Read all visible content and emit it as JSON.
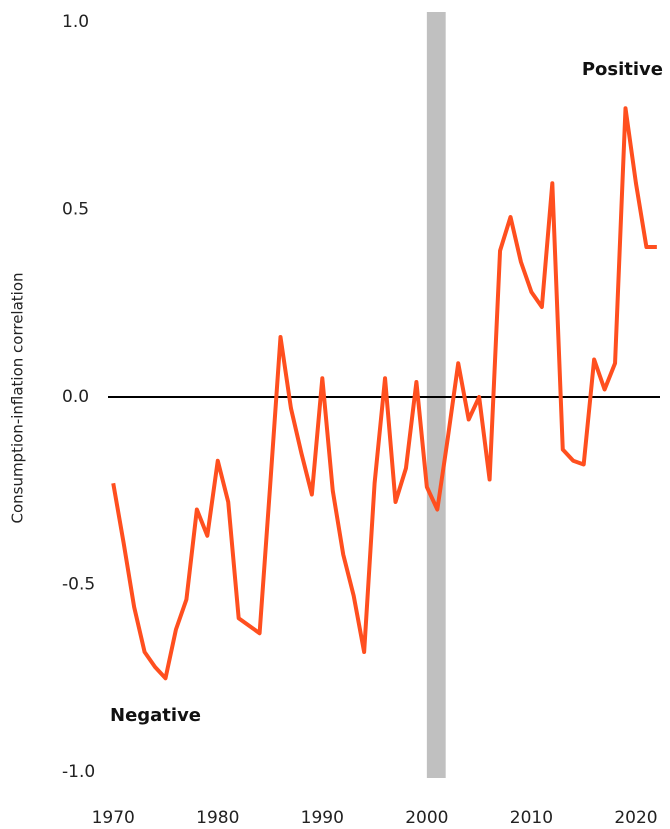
{
  "chart_data": {
    "type": "line",
    "y_label": "Consumption-inflation correlation",
    "annotations": [
      "Positive",
      "Negative"
    ],
    "x": [
      1970,
      1971,
      1972,
      1973,
      1974,
      1975,
      1976,
      1977,
      1978,
      1979,
      1980,
      1981,
      1982,
      1983,
      1984,
      1985,
      1986,
      1987,
      1988,
      1989,
      1990,
      1991,
      1992,
      1993,
      1994,
      1995,
      1996,
      1997,
      1998,
      1999,
      2000,
      2001,
      2002,
      2003,
      2004,
      2005,
      2006,
      2007,
      2008,
      2009,
      2010,
      2011,
      2012,
      2013,
      2014,
      2015,
      2016,
      2017,
      2018,
      2019,
      2020,
      2021,
      2022
    ],
    "series": [
      {
        "color": "#ff4f1f",
        "values": [
          -0.23,
          -0.39,
          -0.56,
          -0.68,
          -0.72,
          -0.75,
          -0.62,
          -0.54,
          -0.3,
          -0.37,
          -0.17,
          -0.28,
          -0.59,
          -0.61,
          -0.63,
          -0.24,
          0.16,
          -0.03,
          -0.15,
          -0.26,
          0.05,
          -0.25,
          -0.42,
          -0.53,
          -0.68,
          -0.23,
          0.05,
          -0.28,
          -0.19,
          0.04,
          -0.24,
          -0.3,
          -0.11,
          0.09,
          -0.06,
          0.0,
          -0.22,
          0.39,
          0.48,
          0.36,
          0.28,
          0.24,
          0.57,
          -0.14,
          -0.17,
          -0.18,
          0.1,
          0.02,
          0.09,
          0.77,
          0.57,
          0.4,
          0.4
        ]
      }
    ],
    "xlim": [
      1969.5,
      2022.3
    ],
    "xticks": [
      1970,
      1980,
      1990,
      2000,
      2010,
      2020
    ],
    "ylim": [
      -1,
      1
    ],
    "yticks": [
      {
        "value": -1,
        "label": "-1.0"
      },
      -0.5,
      {
        "value": 0,
        "label": "0.0"
      },
      0.5,
      {
        "value": 1,
        "label": "1.0"
      }
    ],
    "reference_line": 0,
    "shaded_xrange": [
      2000,
      2001.8
    ],
    "shade_color": "#c0c0c0"
  }
}
